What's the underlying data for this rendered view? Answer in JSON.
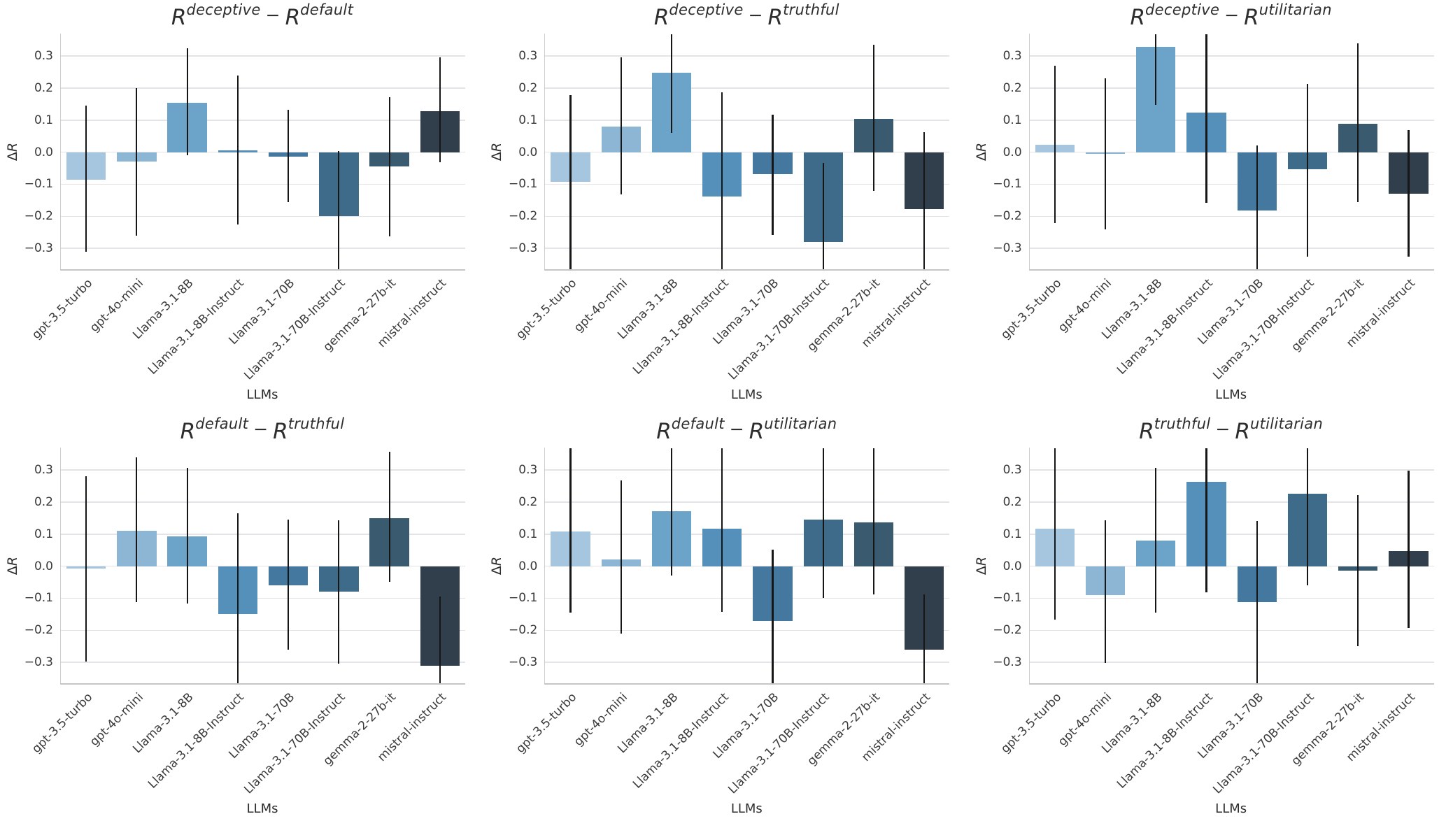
{
  "figure": {
    "ylabel_delta": "Δ",
    "ylabel_r": "R",
    "xlabel": "LLMs",
    "background": "#ffffff",
    "gridline_color": "#e4e4e8",
    "errorbar_color": "#161616",
    "text_color": "#2d2d2d"
  },
  "palette": [
    "#a6c5de",
    "#8cb6d4",
    "#6ba3c9",
    "#5590ba",
    "#44789f",
    "#3f6b8a",
    "#3a5a70",
    "#313f4c"
  ],
  "axis": {
    "ymin": -0.365,
    "ymax": 0.37,
    "ticks": [
      {
        "value": 0.3,
        "label": "0.3"
      },
      {
        "value": 0.2,
        "label": "0.2"
      },
      {
        "value": 0.1,
        "label": "0.1"
      },
      {
        "value": 0.0,
        "label": "0.0"
      },
      {
        "value": -0.1,
        "label": "−0.1"
      },
      {
        "value": -0.2,
        "label": "−0.2"
      },
      {
        "value": -0.3,
        "label": "−0.3"
      }
    ]
  },
  "models": [
    "gpt-3.5-turbo",
    "gpt-4o-mini",
    "Llama-3.1-8B",
    "Llama-3.1-8B-Instruct",
    "Llama-3.1-70B",
    "Llama-3.1-70B-Instruct",
    "gemma-2-27b-it",
    "mistral-instruct"
  ],
  "chart_data": [
    {
      "type": "bar",
      "title": {
        "base1": "R",
        "sup1": "deceptive",
        "minus": "−",
        "base2": "R",
        "sup2": "default"
      },
      "xlabel": "LLMs",
      "ylabel": "ΔR",
      "ylim": [
        -0.365,
        0.37
      ],
      "grid": true,
      "categories": [
        "gpt-3.5-turbo",
        "gpt-4o-mini",
        "Llama-3.1-8B",
        "Llama-3.1-8B-Instruct",
        "Llama-3.1-70B",
        "Llama-3.1-70B-Instruct",
        "gemma-2-27b-it",
        "mistral-instruct"
      ],
      "values": [
        -0.085,
        -0.03,
        0.155,
        0.005,
        -0.013,
        -0.2,
        -0.044,
        0.128
      ],
      "error_low": [
        -0.31,
        -0.26,
        -0.01,
        -0.225,
        -0.155,
        -0.365,
        -0.262,
        -0.032
      ],
      "error_high": [
        0.145,
        0.2,
        0.325,
        0.24,
        0.132,
        0.004,
        0.172,
        0.296
      ]
    },
    {
      "type": "bar",
      "title": {
        "base1": "R",
        "sup1": "deceptive",
        "minus": "−",
        "base2": "R",
        "sup2": "truthful"
      },
      "xlabel": "LLMs",
      "ylabel": "ΔR",
      "ylim": [
        -0.365,
        0.37
      ],
      "grid": true,
      "categories": [
        "gpt-3.5-turbo",
        "gpt-4o-mini",
        "Llama-3.1-8B",
        "Llama-3.1-8B-Instruct",
        "Llama-3.1-70B",
        "Llama-3.1-70B-Instruct",
        "gemma-2-27b-it",
        "mistral-instruct"
      ],
      "values": [
        -0.092,
        0.081,
        0.248,
        -0.138,
        -0.069,
        -0.28,
        0.104,
        -0.178
      ],
      "error_low": [
        -0.365,
        -0.131,
        0.06,
        -0.365,
        -0.258,
        -0.365,
        -0.12,
        -0.365
      ],
      "error_high": [
        0.178,
        0.296,
        0.368,
        0.187,
        0.118,
        -0.033,
        0.336,
        0.062
      ]
    },
    {
      "type": "bar",
      "title": {
        "base1": "R",
        "sup1": "deceptive",
        "minus": "−",
        "base2": "R",
        "sup2": "utilitarian"
      },
      "xlabel": "LLMs",
      "ylabel": "ΔR",
      "ylim": [
        -0.365,
        0.37
      ],
      "grid": true,
      "categories": [
        "gpt-3.5-turbo",
        "gpt-4o-mini",
        "Llama-3.1-8B",
        "Llama-3.1-8B-Instruct",
        "Llama-3.1-70B",
        "Llama-3.1-70B-Instruct",
        "gemma-2-27b-it",
        "mistral-instruct"
      ],
      "values": [
        0.024,
        -0.006,
        0.329,
        0.123,
        -0.182,
        -0.054,
        0.089,
        -0.129
      ],
      "error_low": [
        -0.22,
        -0.241,
        0.148,
        -0.158,
        -0.365,
        -0.325,
        -0.156,
        -0.325
      ],
      "error_high": [
        0.27,
        0.23,
        0.368,
        0.368,
        0.021,
        0.214,
        0.339,
        0.068
      ]
    },
    {
      "type": "bar",
      "title": {
        "base1": "R",
        "sup1": "default",
        "minus": "−",
        "base2": "R",
        "sup2": "truthful"
      },
      "xlabel": "LLMs",
      "ylabel": "ΔR",
      "ylim": [
        -0.365,
        0.37
      ],
      "grid": true,
      "categories": [
        "gpt-3.5-turbo",
        "gpt-4o-mini",
        "Llama-3.1-8B",
        "Llama-3.1-8B-Instruct",
        "Llama-3.1-70B",
        "Llama-3.1-70B-Instruct",
        "gemma-2-27b-it",
        "mistral-instruct"
      ],
      "values": [
        -0.007,
        0.11,
        0.093,
        -0.15,
        -0.06,
        -0.079,
        0.149,
        -0.31
      ],
      "error_low": [
        -0.297,
        -0.112,
        -0.116,
        -0.365,
        -0.26,
        -0.303,
        -0.048,
        -0.365
      ],
      "error_high": [
        0.281,
        0.34,
        0.306,
        0.164,
        0.146,
        0.143,
        0.357,
        -0.094
      ]
    },
    {
      "type": "bar",
      "title": {
        "base1": "R",
        "sup1": "default",
        "minus": "−",
        "base2": "R",
        "sup2": "utilitarian"
      },
      "xlabel": "LLMs",
      "ylabel": "ΔR",
      "ylim": [
        -0.365,
        0.37
      ],
      "grid": true,
      "categories": [
        "gpt-3.5-turbo",
        "gpt-4o-mini",
        "Llama-3.1-8B",
        "Llama-3.1-8B-Instruct",
        "Llama-3.1-70B",
        "Llama-3.1-70B-Instruct",
        "gemma-2-27b-it",
        "mistral-instruct"
      ],
      "values": [
        0.108,
        0.021,
        0.171,
        0.116,
        -0.17,
        0.145,
        0.136,
        -0.26
      ],
      "error_low": [
        -0.145,
        -0.21,
        -0.03,
        -0.143,
        -0.365,
        -0.099,
        -0.089,
        -0.365
      ],
      "error_high": [
        0.368,
        0.268,
        0.368,
        0.368,
        0.051,
        0.368,
        0.368,
        -0.089
      ]
    },
    {
      "type": "bar",
      "title": {
        "base1": "R",
        "sup1": "truthful",
        "minus": "−",
        "base2": "R",
        "sup2": "utilitarian"
      },
      "xlabel": "LLMs",
      "ylabel": "ΔR",
      "ylim": [
        -0.365,
        0.37
      ],
      "grid": true,
      "categories": [
        "gpt-3.5-turbo",
        "gpt-4o-mini",
        "Llama-3.1-8B",
        "Llama-3.1-8B-Instruct",
        "Llama-3.1-70B",
        "Llama-3.1-70B-Instruct",
        "gemma-2-27b-it",
        "mistral-instruct"
      ],
      "values": [
        0.116,
        -0.09,
        0.079,
        0.264,
        -0.112,
        0.225,
        -0.014,
        0.048
      ],
      "error_low": [
        -0.166,
        -0.301,
        -0.144,
        -0.081,
        -0.365,
        -0.06,
        -0.249,
        -0.192
      ],
      "error_high": [
        0.368,
        0.144,
        0.306,
        0.368,
        0.14,
        0.368,
        0.221,
        0.297
      ]
    }
  ]
}
